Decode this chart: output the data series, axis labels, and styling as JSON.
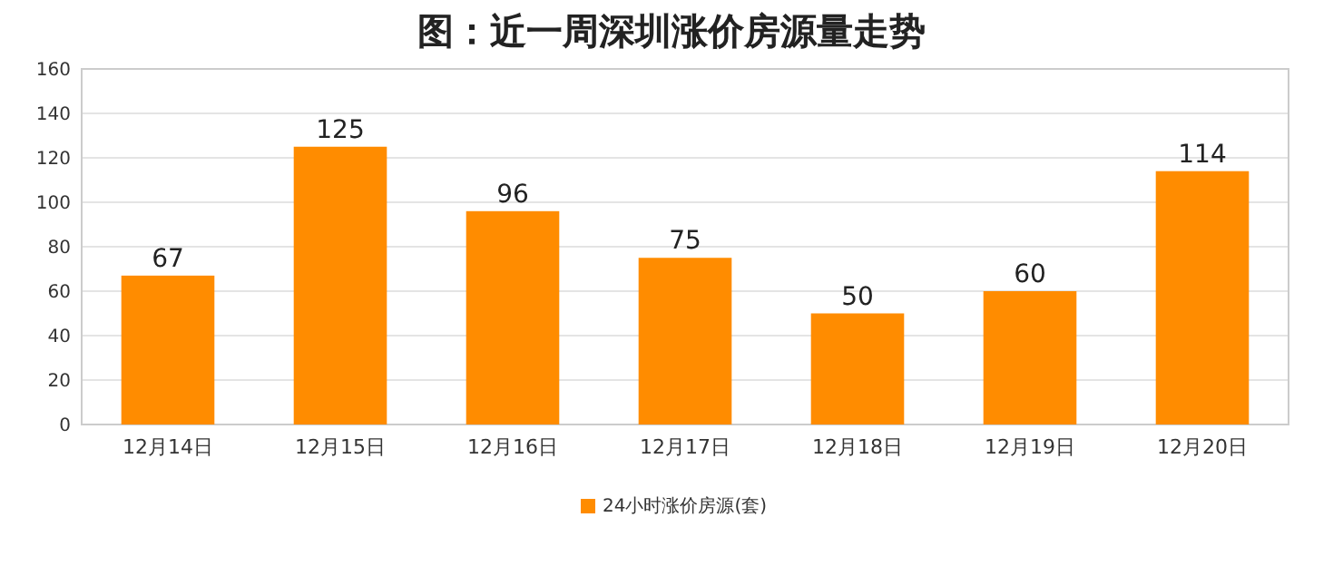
{
  "chart_data": {
    "type": "bar",
    "title": "图：近一周深圳涨价房源量走势",
    "categories": [
      "12月14日",
      "12月15日",
      "12月16日",
      "12月17日",
      "12月18日",
      "12月19日",
      "12月20日"
    ],
    "series": [
      {
        "name": "24小时涨价房源(套)",
        "color": "#ff8c00",
        "values": [
          67,
          125,
          96,
          75,
          50,
          60,
          114
        ]
      }
    ],
    "ylim": [
      0,
      160
    ],
    "yticks": [
      0,
      20,
      40,
      60,
      80,
      100,
      120,
      140,
      160
    ],
    "grid": "y",
    "data_labels": true,
    "legend": "bottom"
  }
}
